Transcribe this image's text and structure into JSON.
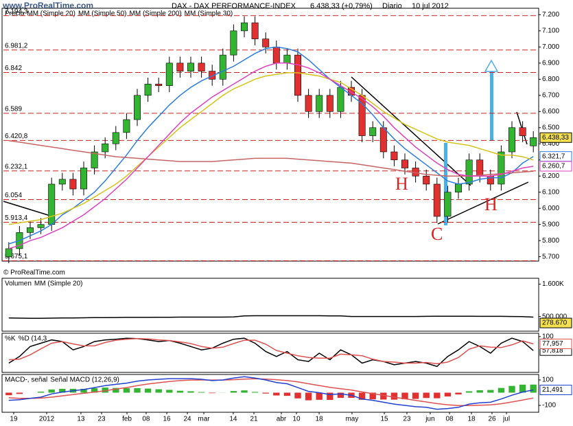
{
  "header": {
    "logo": "www.ProRealTime.com",
    "title": "DAX - DAX PERFORMANCE-INDEX",
    "price": "6.438,33 (+0,79%)",
    "period": "Diario",
    "date": "10 jul 2012",
    "copyright": "© ProRealTime.com"
  },
  "chart_data": [
    {
      "type": "candlestick",
      "name": "Precio",
      "xlim": [
        0,
        50
      ],
      "ylim": [
        5673,
        7240
      ],
      "yticks": [
        {
          "value": 5700,
          "label": "5.700"
        },
        {
          "value": 5800,
          "label": "5.800"
        },
        {
          "value": 5900,
          "label": "5.900"
        },
        {
          "value": 6000,
          "label": "6.000"
        },
        {
          "value": 6100,
          "label": "6.100"
        },
        {
          "value": 6200,
          "label": "6.200"
        },
        {
          "value": 6300,
          "label": "6.300"
        },
        {
          "value": 6400,
          "label": "6.400"
        },
        {
          "value": 6500,
          "label": "6.500"
        },
        {
          "value": 6600,
          "label": "6.600"
        },
        {
          "value": 6700,
          "label": "6.700"
        },
        {
          "value": 6800,
          "label": "6.800"
        },
        {
          "value": 6900,
          "label": "6.900"
        },
        {
          "value": 7000,
          "label": "7.000"
        },
        {
          "value": 7100,
          "label": "7.100"
        },
        {
          "value": 7200,
          "label": "7.200"
        }
      ],
      "open": [
        5700,
        5750,
        5850,
        5880,
        5900,
        6150,
        6180,
        6120,
        6250,
        6350,
        6400,
        6470,
        6550,
        6700,
        6770,
        6760,
        6900,
        6850,
        6900,
        6850,
        6800,
        6950,
        7100,
        7150,
        7050,
        7000,
        6900,
        6950,
        6700,
        6600,
        6700,
        6600,
        6750,
        6700,
        6450,
        6500,
        6350,
        6300,
        6250,
        6200,
        6150,
        5950,
        6100,
        6150,
        6300,
        6200,
        6150,
        6350,
        6500,
        6387
      ],
      "high": [
        5790,
        5890,
        5920,
        5940,
        6190,
        6220,
        6220,
        6290,
        6390,
        6440,
        6510,
        6590,
        6740,
        6810,
        6810,
        6940,
        6940,
        6940,
        6940,
        6890,
        6990,
        7140,
        7190,
        7190,
        7090,
        7040,
        6990,
        6990,
        6740,
        6740,
        6740,
        6790,
        6790,
        6740,
        6540,
        6540,
        6390,
        6340,
        6290,
        6240,
        6190,
        6140,
        6190,
        6340,
        6340,
        6240,
        6390,
        6540,
        6540,
        6478
      ],
      "low": [
        5660,
        5710,
        5810,
        5840,
        5860,
        6110,
        6080,
        6080,
        6210,
        6310,
        6360,
        6430,
        6510,
        6660,
        6720,
        6720,
        6810,
        6810,
        6810,
        6760,
        6760,
        6910,
        7060,
        7010,
        6960,
        6860,
        6860,
        6660,
        6560,
        6560,
        6560,
        6560,
        6660,
        6410,
        6410,
        6310,
        6260,
        6210,
        6160,
        6110,
        5910,
        5910,
        6060,
        6110,
        6160,
        6110,
        6110,
        6310,
        6410,
        6347
      ],
      "close": [
        5750,
        5850,
        5880,
        5900,
        6150,
        6180,
        6120,
        6250,
        6350,
        6400,
        6470,
        6550,
        6700,
        6770,
        6760,
        6900,
        6850,
        6900,
        6850,
        6800,
        6950,
        7100,
        7150,
        7050,
        7000,
        6900,
        6950,
        6700,
        6600,
        6700,
        6600,
        6750,
        6700,
        6450,
        6500,
        6350,
        6300,
        6250,
        6200,
        6150,
        5950,
        6100,
        6150,
        6300,
        6200,
        6150,
        6350,
        6500,
        6450,
        6438.33
      ],
      "up_color": "#33b533",
      "down_color": "#e03030",
      "last_label": "6.438,33",
      "series": [
        {
          "name": "MM (Simple 20)",
          "color": "#2a7de1",
          "last_label": "6.321,7",
          "values": [
            5780,
            5800,
            5830,
            5860,
            5900,
            5960,
            6000,
            6050,
            6100,
            6170,
            6250,
            6330,
            6420,
            6500,
            6570,
            6640,
            6700,
            6750,
            6790,
            6820,
            6850,
            6880,
            6920,
            6960,
            6990,
            7000,
            6990,
            6970,
            6920,
            6860,
            6800,
            6750,
            6700,
            6650,
            6580,
            6500,
            6430,
            6370,
            6320,
            6270,
            6220,
            6170,
            6150,
            6160,
            6180,
            6190,
            6190,
            6220,
            6280,
            6321.7
          ]
        },
        {
          "name": "MM (Simple 50)",
          "color": "#d4c41a",
          "values": [
            5900,
            5910,
            5920,
            5930,
            5950,
            5970,
            6000,
            6030,
            6070,
            6110,
            6150,
            6200,
            6260,
            6320,
            6380,
            6440,
            6500,
            6550,
            6600,
            6650,
            6700,
            6740,
            6770,
            6800,
            6820,
            6830,
            6840,
            6840,
            6830,
            6820,
            6800,
            6780,
            6740,
            6700,
            6650,
            6600,
            6560,
            6520,
            6490,
            6460,
            6430,
            6410,
            6400,
            6390,
            6370,
            6350,
            6330,
            6330,
            6320,
            6300
          ]
        },
        {
          "name": "MM (Simple 200)",
          "color": "#c86464",
          "values": [
            6420,
            6410,
            6400,
            6390,
            6380,
            6370,
            6360,
            6350,
            6340,
            6330,
            6320,
            6315,
            6310,
            6305,
            6300,
            6295,
            6290,
            6290,
            6290,
            6290,
            6295,
            6300,
            6305,
            6310,
            6310,
            6310,
            6310,
            6305,
            6300,
            6295,
            6290,
            6285,
            6280,
            6270,
            6260,
            6250,
            6240,
            6230,
            6220,
            6210,
            6205,
            6200,
            6200,
            6200,
            6205,
            6210,
            6215,
            6220,
            6225,
            6230
          ]
        },
        {
          "name": "MM (Simple 30)",
          "color": "#e040c0",
          "last_label": "6.260,7",
          "values": [
            5750,
            5770,
            5800,
            5820,
            5850,
            5880,
            5920,
            5960,
            6010,
            6060,
            6120,
            6180,
            6250,
            6320,
            6390,
            6460,
            6530,
            6590,
            6640,
            6690,
            6730,
            6770,
            6810,
            6850,
            6880,
            6900,
            6900,
            6890,
            6870,
            6840,
            6800,
            6760,
            6720,
            6680,
            6630,
            6570,
            6500,
            6440,
            6380,
            6330,
            6280,
            6240,
            6210,
            6200,
            6200,
            6200,
            6210,
            6230,
            6250,
            6260.7
          ]
        }
      ],
      "levels": [
        {
          "value": 7194.3,
          "label": "7.194,3"
        },
        {
          "value": 6981.2,
          "label": "6.981,2"
        },
        {
          "value": 6842,
          "label": "6.842"
        },
        {
          "value": 6589,
          "label": "6.589"
        },
        {
          "value": 6420.8,
          "label": "6.420,8"
        },
        {
          "value": 6232.1,
          "label": "6.232,1"
        },
        {
          "value": 6054,
          "label": "6.054"
        },
        {
          "value": 5913.4,
          "label": "5.913,4"
        },
        {
          "value": 5675.1,
          "label": "5.675,1"
        }
      ],
      "level_color": "#d02020",
      "annotations": [
        "H",
        "C",
        "H"
      ]
    },
    {
      "type": "bar",
      "xlim": [
        0,
        50
      ],
      "ylim": [
        0,
        1800000
      ],
      "yticks": [
        {
          "value": 500000,
          "label": "500.000"
        },
        {
          "value": 1600000,
          "label": "1.600K"
        }
      ],
      "series": [
        {
          "name": "Volumen",
          "last_label": "278.670",
          "values": [
            420000,
            380000,
            450000,
            500000,
            520000,
            400000,
            380000,
            460000,
            500000,
            420000,
            480000,
            520000,
            450000,
            470000,
            430000,
            500000,
            460000,
            480000,
            520000,
            440000,
            450000,
            560000,
            1500000,
            600000,
            480000,
            520000,
            500000,
            560000,
            450000,
            480000,
            520000,
            500000,
            470000,
            560000,
            520000,
            480000,
            500000,
            460000,
            520000,
            540000,
            600000,
            560000,
            500000,
            480000,
            520000,
            460000,
            500000,
            480000,
            420000,
            278670
          ]
        },
        {
          "name": "MM (Simple 20)",
          "color": "#000000",
          "values": [
            450000,
            445000,
            440000,
            440000,
            445000,
            450000,
            450000,
            455000,
            460000,
            460000,
            465000,
            470000,
            470000,
            470000,
            475000,
            475000,
            480000,
            480000,
            480000,
            480000,
            480000,
            485000,
            520000,
            525000,
            525000,
            525000,
            525000,
            525000,
            525000,
            525000,
            520000,
            520000,
            500000,
            500000,
            500000,
            500000,
            500000,
            500000,
            500000,
            505000,
            510000,
            510000,
            510000,
            510000,
            505000,
            505000,
            505000,
            500000,
            495000,
            480000
          ]
        }
      ]
    },
    {
      "type": "line",
      "xlim": [
        0,
        50
      ],
      "ylim": [
        -8,
        110
      ],
      "yticks": [
        100
      ],
      "series": [
        {
          "name": "%K",
          "color": "#000000",
          "last_label": "57,818",
          "values": [
            20,
            40,
            70,
            80,
            90,
            85,
            60,
            70,
            85,
            90,
            92,
            95,
            94,
            90,
            85,
            88,
            80,
            70,
            60,
            65,
            80,
            92,
            95,
            80,
            55,
            40,
            55,
            30,
            25,
            50,
            30,
            60,
            45,
            20,
            30,
            25,
            15,
            20,
            25,
            20,
            10,
            40,
            60,
            85,
            70,
            50,
            80,
            95,
            85,
            57.818
          ]
        },
        {
          "name": "%D (14,3",
          "color": "#e05050",
          "last_label": "77,957",
          "values": [
            30,
            32,
            45,
            63,
            80,
            85,
            78,
            72,
            72,
            82,
            89,
            92,
            94,
            93,
            90,
            88,
            84,
            79,
            70,
            65,
            68,
            79,
            89,
            89,
            77,
            58,
            50,
            42,
            37,
            35,
            35,
            47,
            45,
            42,
            32,
            25,
            23,
            20,
            20,
            22,
            18,
            23,
            37,
            62,
            72,
            68,
            67,
            75,
            87,
            77.957
          ]
        }
      ]
    },
    {
      "type": "macd",
      "xlim": [
        0,
        50
      ],
      "ylim": [
        -154,
        143
      ],
      "yticks": [
        100,
        -100
      ],
      "xticks": [
        {
          "value": 0.96,
          "label": "19"
        },
        {
          "value": 4.04,
          "label": "2012"
        },
        {
          "value": 7.24,
          "label": "13"
        },
        {
          "value": 9.17,
          "label": "23"
        },
        {
          "value": 11.54,
          "label": "feb"
        },
        {
          "value": 13.33,
          "label": "08"
        },
        {
          "value": 15.26,
          "label": "16"
        },
        {
          "value": 17.18,
          "label": "24"
        },
        {
          "value": 18.72,
          "label": "mar"
        },
        {
          "value": 21.47,
          "label": "14"
        },
        {
          "value": 23.4,
          "label": "21"
        },
        {
          "value": 25.96,
          "label": "abr"
        },
        {
          "value": 27.37,
          "label": "10"
        },
        {
          "value": 29.49,
          "label": "18"
        },
        {
          "value": 32.56,
          "label": "may"
        },
        {
          "value": 35.58,
          "label": "15"
        },
        {
          "value": 37.69,
          "label": "23"
        },
        {
          "value": 39.87,
          "label": "jun"
        },
        {
          "value": 41.67,
          "label": "08"
        },
        {
          "value": 43.72,
          "label": "18"
        },
        {
          "value": 45.64,
          "label": "26"
        },
        {
          "value": 46.99,
          "label": "jul"
        }
      ],
      "series": [
        {
          "name": "MACD-, señal",
          "type": "bar",
          "values": [
            -20,
            -10,
            0,
            8,
            25,
            30,
            30,
            30,
            35,
            40,
            37,
            35,
            35,
            32,
            27,
            22,
            15,
            11,
            5,
            -4,
            1,
            13,
            18,
            6,
            -7,
            -22,
            -25,
            -45,
            -60,
            -56,
            -57,
            -41,
            -41,
            -56,
            -52,
            -54,
            -55,
            -52,
            -49,
            -42,
            -44,
            -30,
            -14,
            11,
            19,
            21,
            37,
            53,
            63,
            63.491
          ]
        },
        {
          "name": "Señal MACD (12,26,9)",
          "color": "#e05050",
          "values": [
            -40,
            -45,
            -45,
            -43,
            -35,
            -25,
            -15,
            -5,
            5,
            15,
            28,
            40,
            55,
            68,
            78,
            88,
            95,
            99,
            100,
            99,
            99,
            102,
            107,
            109,
            107,
            102,
            95,
            85,
            70,
            56,
            42,
            31,
            21,
            6,
            -8,
            -21,
            -35,
            -48,
            -61,
            -73,
            -86,
            -95,
            -101,
            -101,
            -99,
            -96,
            -87,
            -73,
            -58,
            -42
          ]
        },
        {
          "color": "#2040d0",
          "last_label": "21,491",
          "values": [
            -60,
            -55,
            -45,
            -35,
            -10,
            5,
            15,
            25,
            40,
            55,
            65,
            75,
            90,
            100,
            105,
            110,
            110,
            110,
            105,
            95,
            100,
            115,
            125,
            115,
            100,
            80,
            70,
            40,
            10,
            0,
            -15,
            -10,
            -20,
            -50,
            -60,
            -75,
            -90,
            -100,
            -110,
            -115,
            -130,
            -125,
            -115,
            -90,
            -80,
            -75,
            -50,
            -20,
            5,
            21.491
          ]
        }
      ]
    }
  ]
}
